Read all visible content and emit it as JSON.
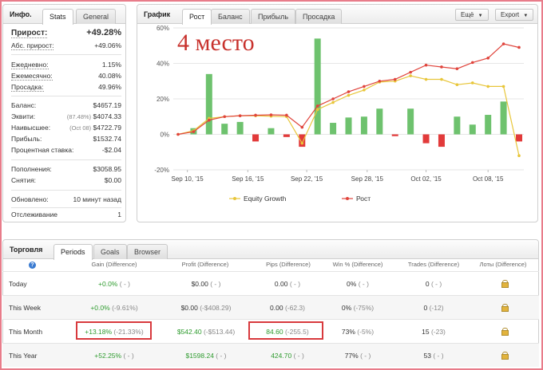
{
  "info_panel": {
    "title": "Инфо.",
    "tabs": [
      "Stats",
      "General"
    ],
    "growth_label": "Прирост:",
    "growth_value": "+49.28%",
    "abs_growth_label": "Абс. прирост:",
    "abs_growth_value": "+49.06%",
    "daily_label": "Ежедневно:",
    "daily_value": "1.15%",
    "monthly_label": "Ежемесячно:",
    "monthly_value": "40.08%",
    "drawdown_label": "Просадка:",
    "drawdown_value": "49.96%",
    "balance_label": "Баланс:",
    "balance_value": "$4657.19",
    "equity_label": "Эквити:",
    "equity_pct": "(87.48%)",
    "equity_value": "$4074.33",
    "highest_label": "Наивысшее:",
    "highest_date": "(Oct 08)",
    "highest_value": "$4722.79",
    "profit_label": "Прибыль:",
    "profit_value": "$1532.74",
    "interest_label": "Процентная ставка:",
    "interest_value": "-$2.04",
    "deposits_label": "Пополнения:",
    "deposits_value": "$3058.95",
    "withdrawals_label": "Снятия:",
    "withdrawals_value": "$0.00",
    "updated_label": "Обновлено:",
    "updated_value": "10 минут назад",
    "tracking_label": "Отслеживание",
    "tracking_value": "1"
  },
  "chart_panel": {
    "title": "График",
    "tabs": [
      "Рост",
      "Баланс",
      "Прибыль",
      "Просадка"
    ],
    "more_button": "Ещё",
    "export_button": "Export",
    "overlay_text": "4 место"
  },
  "chart_data": {
    "type": "bar+line",
    "ylim": [
      -20,
      60
    ],
    "y_ticks": [
      "60%",
      "40%",
      "20%",
      "0%",
      "-20%"
    ],
    "x_ticks": [
      "Sep 10, '15",
      "Sep 16, '15",
      "Sep 22, '15",
      "Sep 28, '15",
      "Oct 02, '15",
      "Oct 08, '15"
    ],
    "x_tick_index": [
      0.6,
      4.5,
      8.3,
      12.2,
      16.0,
      20.0
    ],
    "bars": [
      0,
      3.5,
      34,
      6,
      7,
      -4,
      3.5,
      -1.5,
      -7,
      54,
      6.5,
      9.5,
      10,
      14.5,
      -1,
      14.5,
      -5,
      -7,
      10,
      5.5,
      11,
      18.5,
      -4
    ],
    "equity_growth": [
      0,
      2,
      9,
      10,
      10.5,
      10.5,
      10.2,
      10,
      -5,
      14,
      18,
      22,
      25,
      29.5,
      30,
      33,
      31,
      31,
      28,
      29,
      27,
      27,
      -12
    ],
    "growth": [
      0,
      1.5,
      8,
      10,
      10.5,
      10.8,
      11,
      10.8,
      4,
      16,
      20,
      24,
      27,
      30,
      31,
      35,
      39,
      38,
      37,
      40.5,
      43,
      51,
      49
    ],
    "bar_colors": {
      "positive": "#6ec26e",
      "negative": "#e23a3a"
    },
    "series": [
      {
        "name": "Equity Growth",
        "color": "#e8c63a"
      },
      {
        "name": "Рост",
        "color": "#e0443c"
      }
    ]
  },
  "trading_panel": {
    "title": "Торговля",
    "tabs": [
      "Periods",
      "Goals",
      "Browser"
    ],
    "help_icon": "?",
    "columns": [
      "Gain (Difference)",
      "Profit (Difference)",
      "Pips (Difference)",
      "Win % (Difference)",
      "Trades (Difference)",
      "Лоты (Difference)"
    ],
    "rows": [
      {
        "period": "Today",
        "gain": "+0.0%",
        "gain_diff": "( - )",
        "profit": "$0.00",
        "profit_diff": "( - )",
        "pips": "0.00",
        "pips_diff": "( - )",
        "win": "0%",
        "win_diff": "( - )",
        "trades": "0",
        "trades_diff": "( - )"
      },
      {
        "period": "This Week",
        "gain": "+0.0%",
        "gain_diff": "(-9.61%)",
        "profit": "$0.00",
        "profit_diff": "(-$408.29)",
        "pips": "0.00",
        "pips_diff": "(-62.3)",
        "win": "0%",
        "win_diff": "(-75%)",
        "trades": "0",
        "trades_diff": "(-12)"
      },
      {
        "period": "This Month",
        "gain": "+13.18%",
        "gain_diff": "(-21.33%)",
        "profit": "$542.40",
        "profit_diff": "(-$513.44)",
        "pips": "84.60",
        "pips_diff": "(-255.5)",
        "win": "73%",
        "win_diff": "(-5%)",
        "trades": "15",
        "trades_diff": "(-23)"
      },
      {
        "period": "This Year",
        "gain": "+52.25%",
        "gain_diff": "( - )",
        "profit": "$1598.24",
        "profit_diff": "( - )",
        "pips": "424.70",
        "pips_diff": "( - )",
        "win": "77%",
        "win_diff": "( - )",
        "trades": "53",
        "trades_diff": "( - )"
      }
    ]
  }
}
